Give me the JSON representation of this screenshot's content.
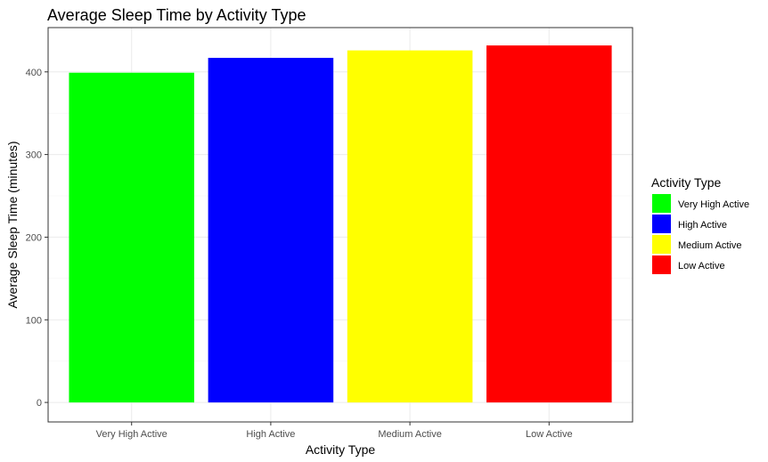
{
  "chart_data": {
    "type": "bar",
    "title": "Average Sleep Time by Activity Type",
    "xlabel": "Activity Type",
    "ylabel": "Average Sleep Time (minutes)",
    "categories": [
      "Very High Active",
      "High Active",
      "Medium Active",
      "Low Active"
    ],
    "values": [
      399,
      417,
      426,
      432
    ],
    "colors": [
      "#00ff00",
      "#0000ff",
      "#ffff00",
      "#ff0000"
    ],
    "ylim": [
      -23.6,
      453.6
    ],
    "yticks": [
      0,
      100,
      200,
      300,
      400
    ],
    "grid": true,
    "legend": {
      "title": "Activity Type",
      "placement": "right",
      "entries": [
        "Very High Active",
        "High Active",
        "Medium Active",
        "Low Active"
      ]
    }
  }
}
